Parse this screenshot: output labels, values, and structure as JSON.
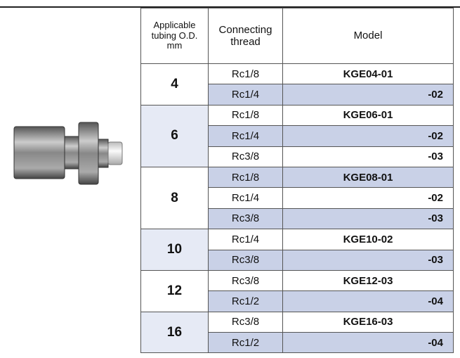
{
  "table": {
    "header": [
      "Applicable\ntubing O.D.\nmm",
      "Connecting\nthread",
      "Model"
    ],
    "groups": [
      {
        "od": "4",
        "rows": [
          [
            "Rc1/8",
            "KGE04-01"
          ],
          [
            "Rc1/4",
            "-02"
          ]
        ]
      },
      {
        "od": "6",
        "rows": [
          [
            "Rc1/8",
            "KGE06-01"
          ],
          [
            "Rc1/4",
            "-02"
          ],
          [
            "Rc3/8",
            "-03"
          ]
        ]
      },
      {
        "od": "8",
        "rows": [
          [
            "Rc1/8",
            "KGE08-01"
          ],
          [
            "Rc1/4",
            "-02"
          ],
          [
            "Rc3/8",
            "-03"
          ]
        ]
      },
      {
        "od": "10",
        "rows": [
          [
            "Rc1/4",
            "KGE10-02"
          ],
          [
            "Rc3/8",
            "-03"
          ]
        ]
      },
      {
        "od": "12",
        "rows": [
          [
            "Rc3/8",
            "KGE12-03"
          ],
          [
            "Rc1/2",
            "-04"
          ]
        ]
      },
      {
        "od": "16",
        "rows": [
          [
            "Rc3/8",
            "KGE16-03"
          ],
          [
            "Rc1/2",
            "-04"
          ]
        ]
      }
    ]
  }
}
